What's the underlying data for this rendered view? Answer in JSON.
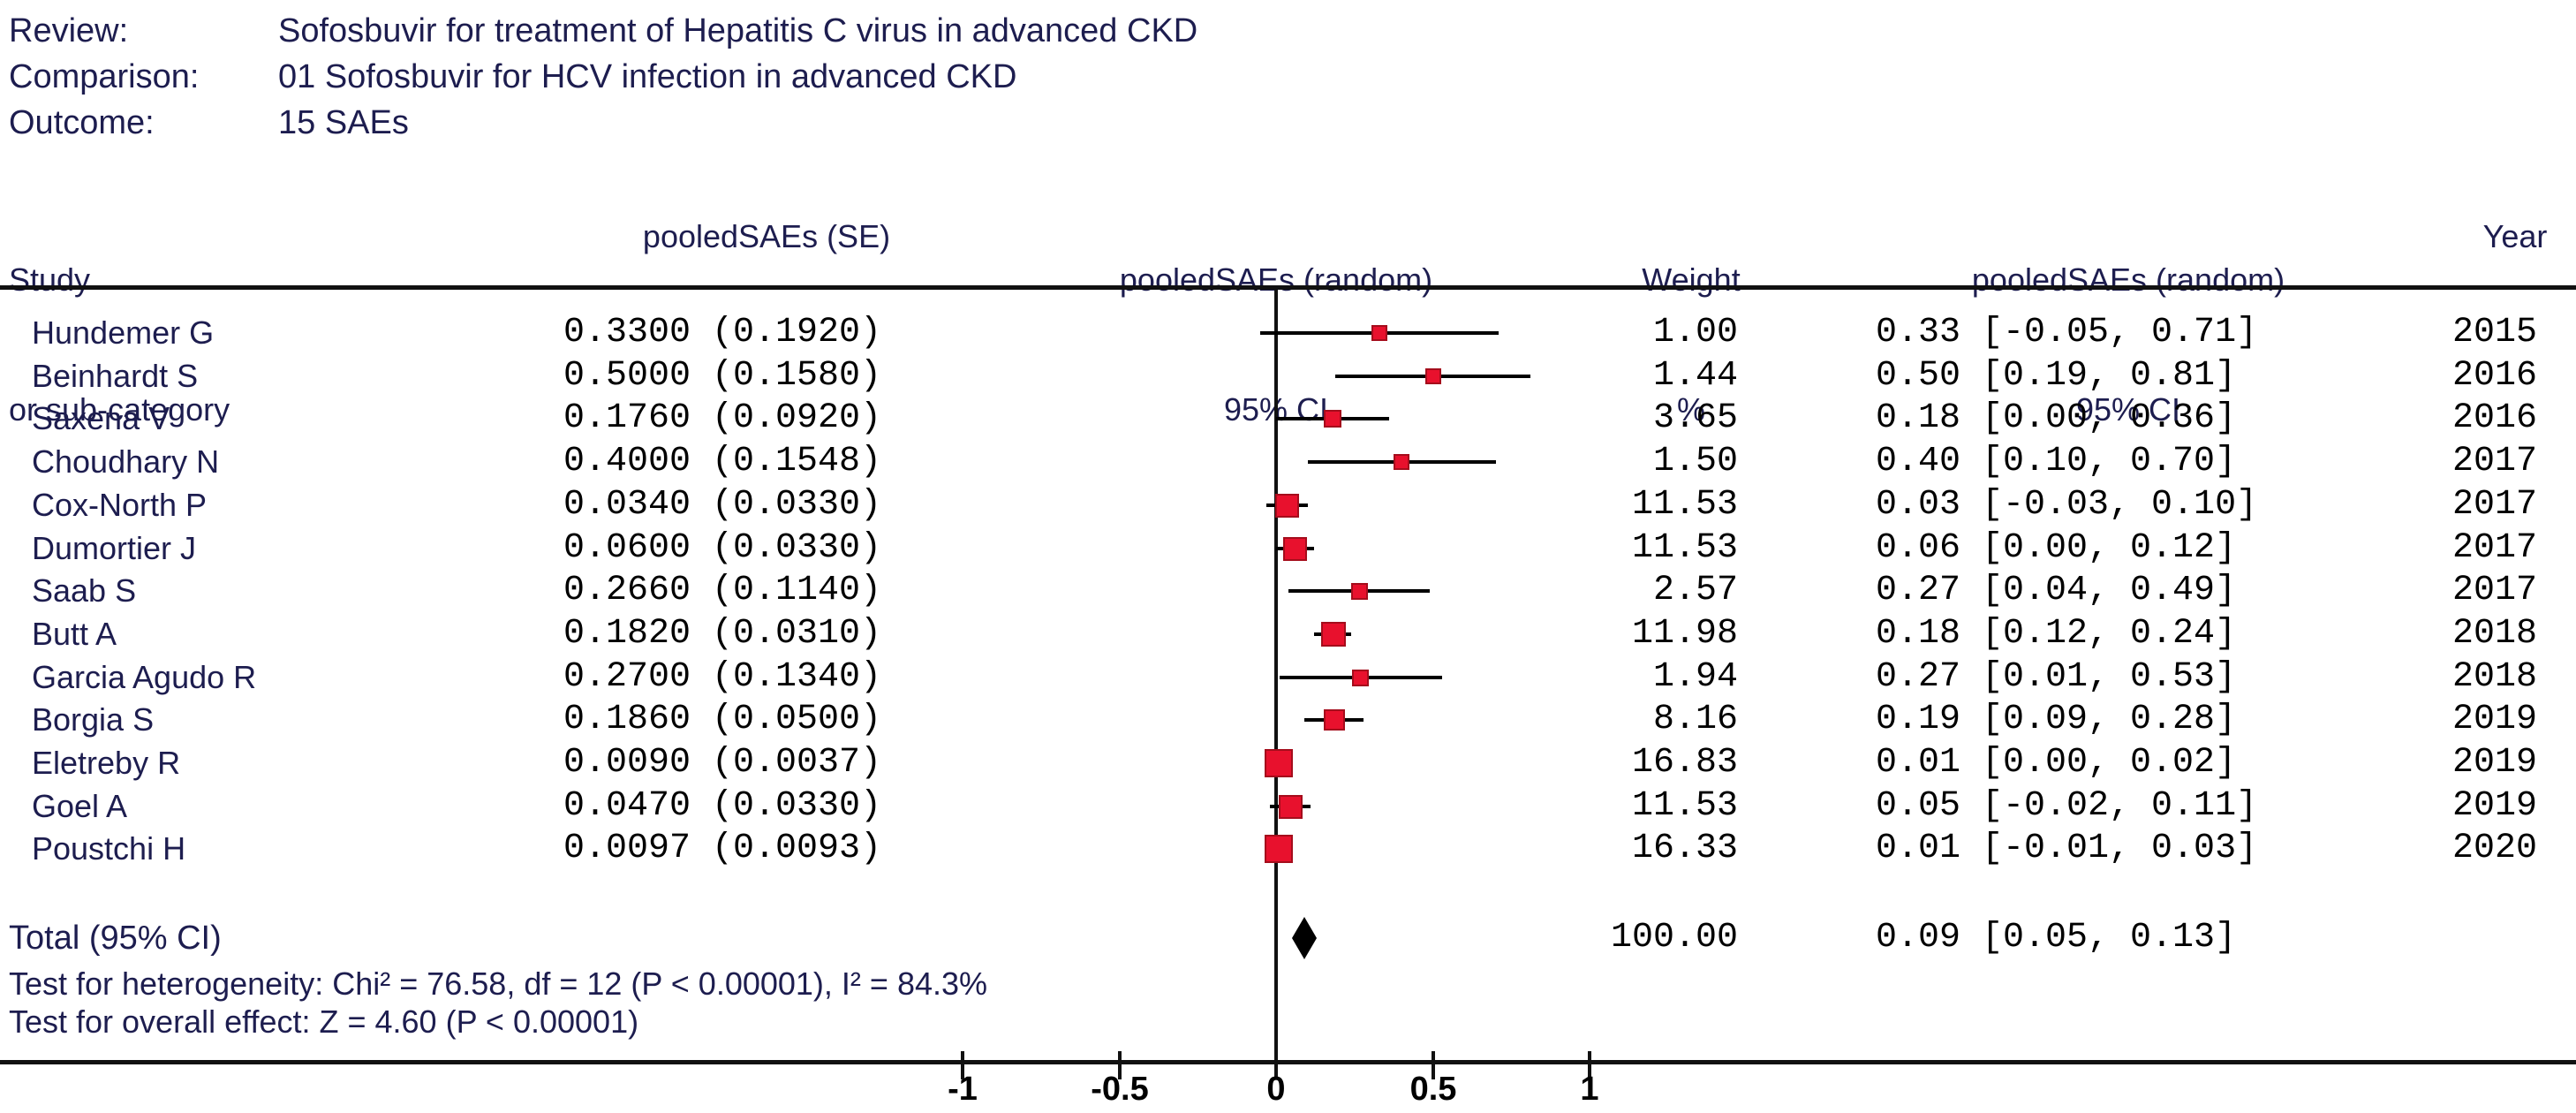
{
  "meta": {
    "review_label": "Review:",
    "review_value": "Sofosbuvir for treatment of Hepatitis C virus in advanced CKD",
    "comparison_label": "Comparison:",
    "comparison_value": "01 Sofosbuvir for HCV infection in advanced CKD",
    "outcome_label": "Outcome:",
    "outcome_value": "15 SAEs"
  },
  "columns": {
    "study_line1": "Study",
    "study_line2": "or sub-category",
    "se_header": "pooledSAEs (SE)",
    "plot_line1": "pooledSAEs (random)",
    "plot_line2": "95% CI",
    "weight_line1": "Weight",
    "weight_line2": "%",
    "ci_line1": "pooledSAEs (random)",
    "ci_line2": "95% CI",
    "year_header": "Year"
  },
  "chart_data": {
    "type": "forest",
    "effect_measure": "pooledSAEs (random) 95% CI",
    "x_axis": {
      "ticks": [
        -1,
        -0.5,
        0,
        0.5,
        1
      ],
      "tick_labels": [
        "-1",
        "-0.5",
        "0",
        "0.5",
        "1"
      ],
      "zero_line": 0,
      "xlim": [
        -1.4,
        1.65
      ],
      "grid": false
    },
    "studies": [
      {
        "name": "Hundemer G",
        "se_text": "0.3300 (0.1920)",
        "est": 0.33,
        "lo": -0.05,
        "hi": 0.71,
        "weight": 1.0,
        "weight_text": "1.00",
        "ci_text": "0.33 [-0.05, 0.71]",
        "year": "2015"
      },
      {
        "name": "Beinhardt S",
        "se_text": "0.5000 (0.1580)",
        "est": 0.5,
        "lo": 0.19,
        "hi": 0.81,
        "weight": 1.44,
        "weight_text": "1.44",
        "ci_text": "0.50 [0.19, 0.81]",
        "year": "2016"
      },
      {
        "name": "Saxena V",
        "se_text": "0.1760 (0.0920)",
        "est": 0.18,
        "lo": 0.0,
        "hi": 0.36,
        "weight": 3.65,
        "weight_text": "3.65",
        "ci_text": "0.18 [0.00, 0.36]",
        "year": "2016"
      },
      {
        "name": "Choudhary N",
        "se_text": "0.4000 (0.1548)",
        "est": 0.4,
        "lo": 0.1,
        "hi": 0.7,
        "weight": 1.5,
        "weight_text": "1.50",
        "ci_text": "0.40 [0.10, 0.70]",
        "year": "2017"
      },
      {
        "name": "Cox-North P",
        "se_text": "0.0340 (0.0330)",
        "est": 0.034,
        "lo": -0.03,
        "hi": 0.1,
        "weight": 11.53,
        "weight_text": "11.53",
        "ci_text": "0.03 [-0.03, 0.10]",
        "year": "2017"
      },
      {
        "name": "Dumortier J",
        "se_text": "0.0600 (0.0330)",
        "est": 0.06,
        "lo": 0.0,
        "hi": 0.12,
        "weight": 11.53,
        "weight_text": "11.53",
        "ci_text": "0.06 [0.00, 0.12]",
        "year": "2017"
      },
      {
        "name": "Saab S",
        "se_text": "0.2660 (0.1140)",
        "est": 0.266,
        "lo": 0.04,
        "hi": 0.49,
        "weight": 2.57,
        "weight_text": "2.57",
        "ci_text": "0.27 [0.04, 0.49]",
        "year": "2017"
      },
      {
        "name": "Butt A",
        "se_text": "0.1820 (0.0310)",
        "est": 0.182,
        "lo": 0.12,
        "hi": 0.24,
        "weight": 11.98,
        "weight_text": "11.98",
        "ci_text": "0.18 [0.12, 0.24]",
        "year": "2018"
      },
      {
        "name": "Garcia Agudo R",
        "se_text": "0.2700 (0.1340)",
        "est": 0.27,
        "lo": 0.01,
        "hi": 0.53,
        "weight": 1.94,
        "weight_text": "1.94",
        "ci_text": "0.27 [0.01, 0.53]",
        "year": "2018"
      },
      {
        "name": "Borgia S",
        "se_text": "0.1860 (0.0500)",
        "est": 0.186,
        "lo": 0.09,
        "hi": 0.28,
        "weight": 8.16,
        "weight_text": "8.16",
        "ci_text": "0.19 [0.09, 0.28]",
        "year": "2019"
      },
      {
        "name": "Eletreby R",
        "se_text": "0.0090 (0.0037)",
        "est": 0.009,
        "lo": 0.0,
        "hi": 0.02,
        "weight": 16.83,
        "weight_text": "16.83",
        "ci_text": "0.01 [0.00, 0.02]",
        "year": "2019"
      },
      {
        "name": "Goel A",
        "se_text": "0.0470 (0.0330)",
        "est": 0.047,
        "lo": -0.02,
        "hi": 0.11,
        "weight": 11.53,
        "weight_text": "11.53",
        "ci_text": "0.05 [-0.02, 0.11]",
        "year": "2019"
      },
      {
        "name": "Poustchi H",
        "se_text": "0.0097 (0.0093)",
        "est": 0.0097,
        "lo": -0.01,
        "hi": 0.03,
        "weight": 16.33,
        "weight_text": "16.33",
        "ci_text": "0.01 [-0.01, 0.03]",
        "year": "2020"
      }
    ],
    "total": {
      "label": "Total (95% CI)",
      "est": 0.09,
      "lo": 0.05,
      "hi": 0.13,
      "weight_text": "100.00",
      "ci_text": "0.09 [0.05, 0.13]"
    },
    "heterogeneity": "Test for heterogeneity: Chi² = 76.58, df = 12 (P < 0.00001), I² = 84.3%",
    "overall": "Test for overall effect: Z = 4.60 (P < 0.00001)"
  },
  "colors": {
    "effect_square": "#e8112d",
    "square_border": "#a50d1c",
    "ci_line": "#000000",
    "summary_diamond": "#000000",
    "heading_text": "#1d1d4f",
    "number_text": "#000000",
    "rule": "#111111",
    "background": "#ffffff"
  }
}
